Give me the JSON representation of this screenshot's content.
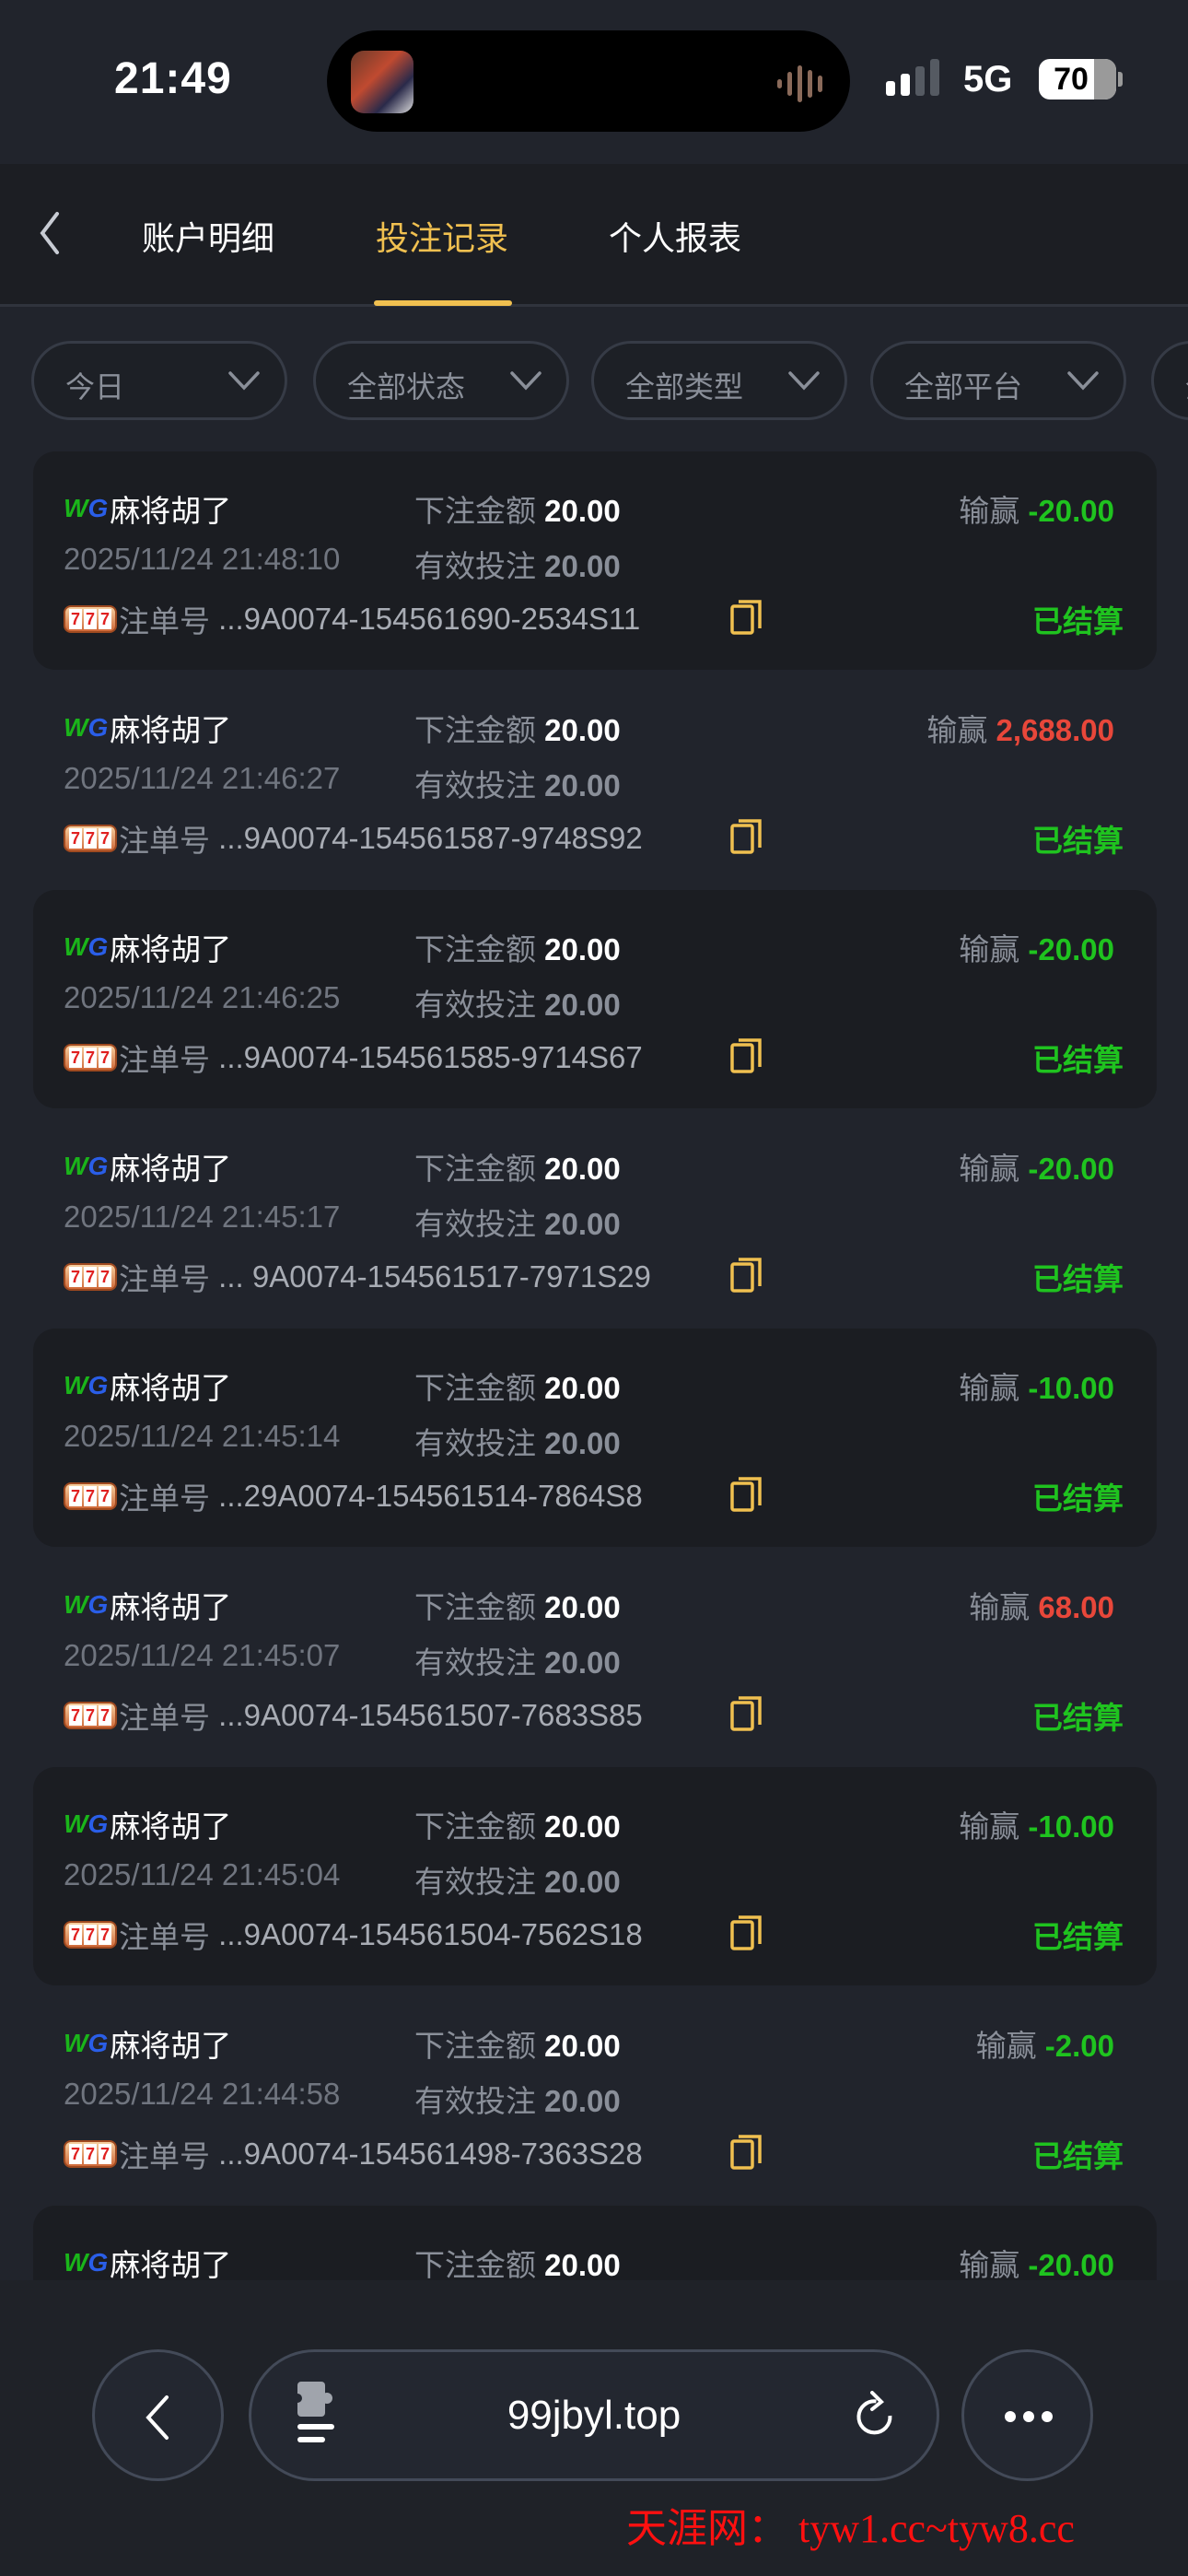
{
  "status_bar": {
    "time": "21:49",
    "network": "5G",
    "battery": "70"
  },
  "header": {
    "tabs": [
      {
        "label": "账户明细",
        "active": false
      },
      {
        "label": "投注记录",
        "active": true
      },
      {
        "label": "个人报表",
        "active": false
      }
    ]
  },
  "filters": [
    {
      "label": "今日"
    },
    {
      "label": "全部状态"
    },
    {
      "label": "全部类型"
    },
    {
      "label": "全部平台"
    },
    {
      "label": "全部"
    }
  ],
  "labels": {
    "bet_amount": "下注金额",
    "valid_bet": "有效投注",
    "win_loss": "输赢",
    "order_no": "注单号",
    "provider_w": "W",
    "provider_g": "G"
  },
  "records": [
    {
      "game": "麻将胡了",
      "bet": "20.00",
      "valid": "20.00",
      "time": "2025/11/24 21:48:10",
      "pl": "-20.00",
      "order": "...9A0074-154561690-2534S11",
      "status": "已结算"
    },
    {
      "game": "麻将胡了",
      "bet": "20.00",
      "valid": "20.00",
      "time": "2025/11/24 21:46:27",
      "pl": "2,688.00",
      "order": "...9A0074-154561587-9748S92",
      "status": "已结算"
    },
    {
      "game": "麻将胡了",
      "bet": "20.00",
      "valid": "20.00",
      "time": "2025/11/24 21:46:25",
      "pl": "-20.00",
      "order": "...9A0074-154561585-9714S67",
      "status": "已结算"
    },
    {
      "game": "麻将胡了",
      "bet": "20.00",
      "valid": "20.00",
      "time": "2025/11/24 21:45:17",
      "pl": "-20.00",
      "order": "... 9A0074-154561517-7971S29",
      "status": "已结算"
    },
    {
      "game": "麻将胡了",
      "bet": "20.00",
      "valid": "20.00",
      "time": "2025/11/24 21:45:14",
      "pl": "-10.00",
      "order": "...29A0074-154561514-7864S8",
      "status": "已结算"
    },
    {
      "game": "麻将胡了",
      "bet": "20.00",
      "valid": "20.00",
      "time": "2025/11/24 21:45:07",
      "pl": "68.00",
      "order": "...9A0074-154561507-7683S85",
      "status": "已结算"
    },
    {
      "game": "麻将胡了",
      "bet": "20.00",
      "valid": "20.00",
      "time": "2025/11/24 21:45:04",
      "pl": "-10.00",
      "order": "...9A0074-154561504-7562S18",
      "status": "已结算"
    },
    {
      "game": "麻将胡了",
      "bet": "20.00",
      "valid": "20.00",
      "time": "2025/11/24 21:44:58",
      "pl": "-2.00",
      "order": "...9A0074-154561498-7363S28",
      "status": "已结算"
    },
    {
      "game": "麻将胡了",
      "bet": "20.00",
      "pl": "-20.00"
    }
  ],
  "browser": {
    "url": "99jbyl.top"
  },
  "watermark": "天涯网： tyw1.cc~tyw8.cc",
  "colors": {
    "accent": "#f0c050",
    "win": "#e8473a",
    "loss": "#1fc31f",
    "settled": "#1fc31f",
    "background": "#21242c"
  }
}
